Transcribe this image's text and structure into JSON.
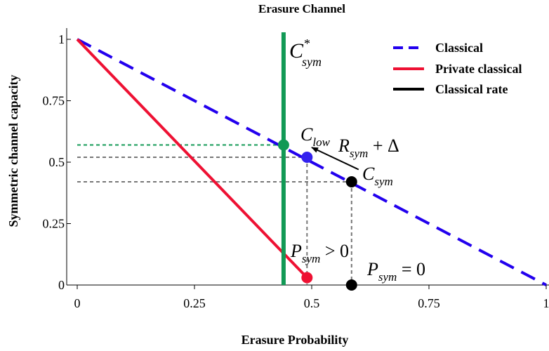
{
  "chart_data": {
    "type": "line",
    "title": "Erasure Channel",
    "xlabel": "Erasure Probability",
    "ylabel": "Symmetric channel capacity",
    "xlim": [
      0,
      1
    ],
    "ylim": [
      0,
      1
    ],
    "x_ticks": [
      0,
      0.25,
      0.5,
      0.75,
      1
    ],
    "x_tick_labels": [
      "0",
      "0.25",
      "0.5",
      "0.75",
      "1"
    ],
    "y_ticks": [
      0,
      0.25,
      0.5,
      0.75,
      1
    ],
    "y_tick_labels": [
      "0",
      "0.25",
      "0.5",
      "0.75",
      "1"
    ],
    "grid": false,
    "legend_position": "top-right",
    "series": [
      {
        "name": "Classical",
        "color": "#2200ee",
        "style": "dashed",
        "x": [
          0,
          1
        ],
        "y": [
          1,
          0
        ]
      },
      {
        "name": "Private classical",
        "color": "#ee1133",
        "style": "solid",
        "x": [
          0,
          0.49
        ],
        "y": [
          1,
          0.03
        ]
      },
      {
        "name": "Classical rate",
        "color": "#000000",
        "style": "solid",
        "x": [],
        "y": []
      }
    ],
    "vertical_line": {
      "x": 0.44,
      "color": "#119955",
      "label_main": "C",
      "label_sup": "*",
      "label_sub": "sym"
    },
    "points": [
      {
        "x": 0.44,
        "y": 0.57,
        "color": "#119955"
      },
      {
        "x": 0.49,
        "y": 0.52,
        "color": "#3322ee"
      },
      {
        "x": 0.585,
        "y": 0.42,
        "color": "#000000"
      },
      {
        "x": 0.49,
        "y": 0.03,
        "color": "#ee1133"
      },
      {
        "x": 0.585,
        "y": 0.0,
        "color": "#000000"
      }
    ],
    "guides": [
      {
        "y": 0.57,
        "x_end": 0.44,
        "color": "#119955"
      },
      {
        "y": 0.52,
        "x_end": 0.49,
        "color": "#777777"
      },
      {
        "y": 0.42,
        "x_end": 0.585,
        "color": "#777777"
      },
      {
        "x": 0.49,
        "y_end": 0.52,
        "color": "#777777"
      },
      {
        "x": 0.585,
        "y_end": 0.42,
        "color": "#777777"
      }
    ],
    "arrow": {
      "from": [
        0.6,
        0.47
      ],
      "to": [
        0.5,
        0.56
      ]
    },
    "annotations": {
      "c_low": {
        "main": "C",
        "sub": "low"
      },
      "r_sym": {
        "main": "R",
        "sub": "sym",
        "rest": " + Δ"
      },
      "c_sym": {
        "main": "C",
        "sub": "sym"
      },
      "p_pos": {
        "main": "P",
        "sub": "sym",
        "rest": " > 0"
      },
      "p_zero": {
        "main": "P",
        "sub": "sym",
        "rest": " = 0"
      }
    }
  }
}
